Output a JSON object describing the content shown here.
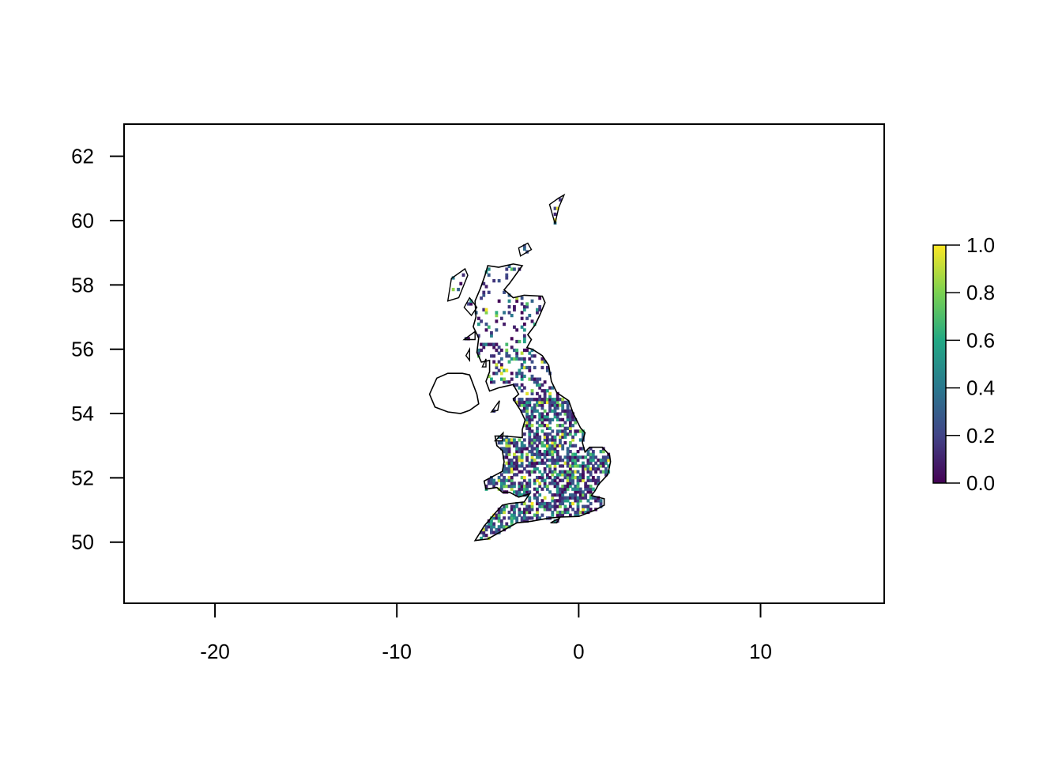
{
  "chart_data": {
    "type": "heatmap",
    "title": "",
    "xlabel": "",
    "ylabel": "",
    "xlim": [
      -25,
      16.8
    ],
    "ylim": [
      48.1,
      63
    ],
    "x_ticks": [
      -20,
      -10,
      0,
      10
    ],
    "x_tick_labels": [
      "-20",
      "-10",
      "0",
      "10"
    ],
    "y_ticks": [
      50,
      52,
      54,
      56,
      58,
      60,
      62
    ],
    "y_tick_labels": [
      "50",
      "52",
      "54",
      "56",
      "58",
      "60",
      "62"
    ],
    "grid": false,
    "legend": {
      "type": "colorbar",
      "placement": "right",
      "range": [
        0,
        1
      ],
      "ticks": [
        0,
        0.2,
        0.4,
        0.6,
        0.8,
        1
      ],
      "tick_labels": [
        "0.0",
        "0.2",
        "0.4",
        "0.6",
        "0.8",
        "1.0"
      ],
      "palette": "viridis",
      "colors": [
        "#440154",
        "#414487",
        "#2a788e",
        "#22a884",
        "#7ad151",
        "#fde725"
      ]
    },
    "coastline": {
      "great_britain": [
        [
          -5.7,
          50.05
        ],
        [
          -5.0,
          50.1
        ],
        [
          -4.2,
          50.35
        ],
        [
          -3.4,
          50.6
        ],
        [
          -2.6,
          50.65
        ],
        [
          -1.6,
          50.75
        ],
        [
          -1.0,
          50.78
        ],
        [
          0.0,
          50.8
        ],
        [
          0.9,
          51.0
        ],
        [
          1.4,
          51.15
        ],
        [
          1.4,
          51.35
        ],
        [
          0.7,
          51.45
        ],
        [
          0.9,
          51.6
        ],
        [
          1.1,
          51.8
        ],
        [
          1.6,
          52.1
        ],
        [
          1.75,
          52.5
        ],
        [
          1.7,
          52.7
        ],
        [
          1.3,
          52.95
        ],
        [
          0.6,
          52.95
        ],
        [
          0.35,
          52.8
        ],
        [
          0.2,
          53.1
        ],
        [
          0.35,
          53.4
        ],
        [
          0.1,
          53.55
        ],
        [
          -0.3,
          54.0
        ],
        [
          -0.55,
          54.4
        ],
        [
          -1.2,
          54.65
        ],
        [
          -1.5,
          55.0
        ],
        [
          -1.65,
          55.5
        ],
        [
          -2.0,
          55.8
        ],
        [
          -2.55,
          56.0
        ],
        [
          -2.85,
          56.05
        ],
        [
          -2.6,
          56.3
        ],
        [
          -2.8,
          56.45
        ],
        [
          -2.4,
          56.75
        ],
        [
          -2.15,
          57.05
        ],
        [
          -1.85,
          57.45
        ],
        [
          -2.0,
          57.65
        ],
        [
          -3.0,
          57.68
        ],
        [
          -3.6,
          57.6
        ],
        [
          -4.1,
          57.85
        ],
        [
          -3.8,
          58.05
        ],
        [
          -3.1,
          58.6
        ],
        [
          -3.6,
          58.65
        ],
        [
          -4.4,
          58.55
        ],
        [
          -5.0,
          58.6
        ],
        [
          -5.15,
          58.3
        ],
        [
          -5.4,
          57.9
        ],
        [
          -5.7,
          57.5
        ],
        [
          -5.65,
          57.0
        ],
        [
          -5.8,
          56.7
        ],
        [
          -5.5,
          56.35
        ],
        [
          -5.6,
          55.9
        ],
        [
          -5.35,
          55.6
        ],
        [
          -4.9,
          55.65
        ],
        [
          -4.9,
          55.3
        ],
        [
          -5.1,
          55.0
        ],
        [
          -4.9,
          54.7
        ],
        [
          -4.4,
          54.8
        ],
        [
          -3.6,
          54.9
        ],
        [
          -3.3,
          54.6
        ],
        [
          -3.6,
          54.45
        ],
        [
          -3.2,
          54.1
        ],
        [
          -2.95,
          53.8
        ],
        [
          -3.1,
          53.5
        ],
        [
          -3.1,
          53.25
        ],
        [
          -4.1,
          53.3
        ],
        [
          -4.6,
          53.3
        ],
        [
          -4.5,
          53.0
        ],
        [
          -4.2,
          52.85
        ],
        [
          -4.1,
          52.5
        ],
        [
          -4.2,
          52.2
        ],
        [
          -4.7,
          52.05
        ],
        [
          -5.2,
          51.9
        ],
        [
          -5.1,
          51.65
        ],
        [
          -4.5,
          51.7
        ],
        [
          -4.2,
          51.55
        ],
        [
          -3.8,
          51.55
        ],
        [
          -3.3,
          51.4
        ],
        [
          -2.7,
          51.5
        ],
        [
          -3.0,
          51.25
        ],
        [
          -3.8,
          51.2
        ],
        [
          -4.2,
          51.15
        ],
        [
          -4.6,
          50.9
        ],
        [
          -5.2,
          50.5
        ],
        [
          -5.7,
          50.05
        ]
      ],
      "ireland_north": [
        [
          -5.5,
          54.3
        ],
        [
          -5.6,
          54.6
        ],
        [
          -6.0,
          55.2
        ],
        [
          -6.4,
          55.25
        ],
        [
          -7.2,
          55.25
        ],
        [
          -7.8,
          55.1
        ],
        [
          -8.2,
          54.6
        ],
        [
          -7.9,
          54.2
        ],
        [
          -7.2,
          54.05
        ],
        [
          -6.5,
          54.0
        ],
        [
          -6.0,
          54.1
        ],
        [
          -5.5,
          54.3
        ]
      ],
      "islands": [
        [
          [
            -4.8,
            54.05
          ],
          [
            -4.35,
            54.4
          ],
          [
            -4.45,
            54.1
          ],
          [
            -4.8,
            54.05
          ]
        ],
        [
          [
            -6.3,
            57.3
          ],
          [
            -6.0,
            57.6
          ],
          [
            -5.6,
            57.3
          ],
          [
            -5.9,
            57.05
          ],
          [
            -6.3,
            57.3
          ]
        ],
        [
          [
            -6.6,
            57.6
          ],
          [
            -6.1,
            58.3
          ],
          [
            -6.25,
            58.5
          ],
          [
            -7.0,
            58.2
          ],
          [
            -7.2,
            57.5
          ],
          [
            -6.6,
            57.6
          ]
        ],
        [
          [
            -6.3,
            56.3
          ],
          [
            -5.7,
            56.55
          ],
          [
            -5.7,
            56.3
          ],
          [
            -6.3,
            56.3
          ]
        ],
        [
          [
            -6.2,
            55.8
          ],
          [
            -6.0,
            56.0
          ],
          [
            -6.0,
            55.65
          ],
          [
            -6.2,
            55.8
          ]
        ],
        [
          [
            -3.2,
            58.9
          ],
          [
            -2.6,
            59.1
          ],
          [
            -2.8,
            59.3
          ],
          [
            -3.3,
            59.15
          ],
          [
            -3.2,
            58.9
          ]
        ],
        [
          [
            -1.3,
            59.9
          ],
          [
            -1.1,
            60.4
          ],
          [
            -0.8,
            60.8
          ],
          [
            -1.1,
            60.7
          ],
          [
            -1.6,
            60.5
          ],
          [
            -1.3,
            59.9
          ]
        ],
        [
          [
            -5.3,
            55.45
          ],
          [
            -5.1,
            55.7
          ],
          [
            -5.1,
            55.45
          ],
          [
            -5.3,
            55.45
          ]
        ],
        [
          [
            -4.6,
            53.15
          ],
          [
            -4.15,
            53.4
          ],
          [
            -4.2,
            53.15
          ],
          [
            -4.6,
            53.15
          ]
        ],
        [
          [
            -1.55,
            50.6
          ],
          [
            -1.05,
            50.75
          ],
          [
            -1.2,
            50.6
          ],
          [
            -1.55,
            50.6
          ]
        ]
      ]
    }
  }
}
